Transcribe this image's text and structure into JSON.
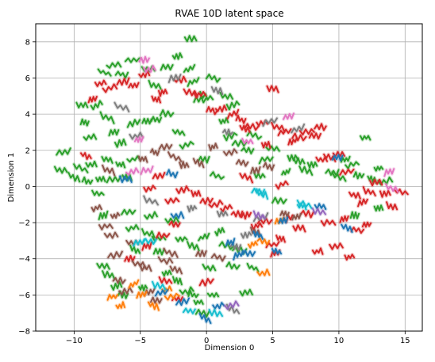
{
  "chart_data": {
    "type": "scatter",
    "title": "RVAE 10D latent space",
    "xlabel": "Dimension 0",
    "ylabel": "Dimension 1",
    "xlim": [
      -12.9,
      16.3
    ],
    "ylim": [
      -8,
      9
    ],
    "xticks": [
      -10,
      -5,
      0,
      5,
      10,
      15
    ],
    "yticks": [
      -8,
      -6,
      -4,
      -2,
      0,
      2,
      4,
      6,
      8
    ],
    "grid": true,
    "legend": "none",
    "colors": {
      "green": "#2ca02c",
      "red": "#d62728",
      "brown": "#8c564b",
      "orange": "#ff7f0e",
      "blue": "#1f77b4",
      "pink": "#e377c2",
      "gray": "#7f7f7f",
      "olive": "#bcbd22",
      "cyan": "#17becf",
      "purple": "#9467bd"
    },
    "series": [
      {
        "color": "green",
        "points": [
          [
            -10.8,
            1.9
          ],
          [
            -11.0,
            0.9
          ],
          [
            -10.0,
            0.5
          ],
          [
            -9.5,
            1.0
          ],
          [
            -9.0,
            0.3
          ],
          [
            -8.7,
            1.2
          ],
          [
            -8.0,
            0.4
          ],
          [
            -7.0,
            0.4
          ],
          [
            -7.5,
            1.5
          ],
          [
            -6.5,
            1.2
          ],
          [
            -6.0,
            0.5
          ],
          [
            -5.5,
            1.5
          ],
          [
            -9.4,
            4.5
          ],
          [
            -9.2,
            3.5
          ],
          [
            -8.8,
            2.7
          ],
          [
            -8.3,
            4.5
          ],
          [
            -7.5,
            3.8
          ],
          [
            -7.0,
            3.0
          ],
          [
            -6.5,
            2.4
          ],
          [
            -5.5,
            3.5
          ],
          [
            -4.5,
            3.6
          ],
          [
            -3.8,
            3.7
          ],
          [
            -3.0,
            4.0
          ],
          [
            -7.7,
            6.3
          ],
          [
            -7.0,
            6.7
          ],
          [
            -6.4,
            6.2
          ],
          [
            -5.6,
            7.0
          ],
          [
            -8.2,
            -0.4
          ],
          [
            -7.8,
            -1.6
          ],
          [
            -7.8,
            -4.4
          ],
          [
            -7.4,
            -4.9
          ],
          [
            -6.8,
            -5.5
          ],
          [
            -6.3,
            -6.0
          ],
          [
            -5.9,
            -1.4
          ],
          [
            -5.4,
            -3.5
          ],
          [
            -4.8,
            -5.6
          ],
          [
            -4.2,
            -1.6
          ],
          [
            -3.6,
            -3.6
          ],
          [
            -3.0,
            -4.8
          ],
          [
            -2.6,
            -1.9
          ],
          [
            -2.2,
            -5.2
          ],
          [
            -1.5,
            -5.8
          ],
          [
            -1.0,
            -6.0
          ],
          [
            -0.6,
            -6.4
          ],
          [
            -0.3,
            -7.0
          ],
          [
            0.2,
            -4.5
          ],
          [
            0.5,
            -6.0
          ],
          [
            1.0,
            -2.5
          ],
          [
            1.5,
            -3.3
          ],
          [
            2.0,
            -4.4
          ],
          [
            2.5,
            -3.5
          ],
          [
            3.0,
            -5.9
          ],
          [
            3.5,
            -4.5
          ],
          [
            -3.9,
            5.6
          ],
          [
            -4.4,
            6.5
          ],
          [
            -3.0,
            6.6
          ],
          [
            -2.2,
            7.2
          ],
          [
            -1.3,
            6.5
          ],
          [
            -1.0,
            5.8
          ],
          [
            -0.5,
            4.8
          ],
          [
            0.0,
            5.0
          ],
          [
            0.5,
            6.0
          ],
          [
            1.5,
            5.0
          ],
          [
            2.0,
            4.5
          ],
          [
            -1.2,
            8.2
          ],
          [
            -2.1,
            3.0
          ],
          [
            -1.5,
            2.3
          ],
          [
            -0.2,
            1.5
          ],
          [
            0.8,
            0.6
          ],
          [
            1.3,
            3.6
          ],
          [
            1.8,
            2.8
          ],
          [
            2.5,
            2.4
          ],
          [
            3.1,
            2.0
          ],
          [
            3.6,
            2.8
          ],
          [
            4.0,
            0.6
          ],
          [
            4.5,
            1.5
          ],
          [
            5.0,
            2.1
          ],
          [
            5.5,
            -0.8
          ],
          [
            6.0,
            0.8
          ],
          [
            6.5,
            1.6
          ],
          [
            7.0,
            1.4
          ],
          [
            7.5,
            0.9
          ],
          [
            8.0,
            1.2
          ],
          [
            9.5,
            0.8
          ],
          [
            10.0,
            0.5
          ],
          [
            10.5,
            1.5
          ],
          [
            11.0,
            1.2
          ],
          [
            11.5,
            0.6
          ],
          [
            12.0,
            2.7
          ],
          [
            12.5,
            0.4
          ],
          [
            13.0,
            1.0
          ],
          [
            13.5,
            0.3
          ],
          [
            -5.6,
            -2.3
          ],
          [
            -4.4,
            -2.6
          ],
          [
            -3.6,
            -2.9
          ],
          [
            -1.9,
            -2.9
          ],
          [
            -1.0,
            -3.3
          ],
          [
            -0.2,
            -2.8
          ],
          [
            11.2,
            -1.6
          ],
          [
            13.0,
            -1.2
          ]
        ]
      },
      {
        "color": "red",
        "points": [
          [
            -9.1,
            1.7
          ],
          [
            -8.6,
            4.8
          ],
          [
            -8.0,
            5.7
          ],
          [
            -7.3,
            5.4
          ],
          [
            -6.3,
            5.8
          ],
          [
            -5.5,
            5.6
          ],
          [
            -4.7,
            6.2
          ],
          [
            -3.8,
            4.8
          ],
          [
            -3.3,
            5.2
          ],
          [
            -2.0,
            5.9
          ],
          [
            -1.2,
            5.2
          ],
          [
            -0.5,
            5.1
          ],
          [
            0.4,
            4.2
          ],
          [
            1.1,
            4.3
          ],
          [
            2.0,
            4.0
          ],
          [
            2.6,
            3.7
          ],
          [
            3.4,
            3.3
          ],
          [
            4.5,
            2.3
          ],
          [
            5.0,
            5.4
          ],
          [
            5.4,
            3.3
          ],
          [
            5.9,
            3.0
          ],
          [
            6.5,
            2.5
          ],
          [
            7.0,
            2.7
          ],
          [
            7.6,
            3.0
          ],
          [
            8.2,
            2.8
          ],
          [
            8.7,
            1.5
          ],
          [
            9.3,
            1.6
          ],
          [
            10.0,
            1.8
          ],
          [
            10.6,
            0.8
          ],
          [
            11.2,
            -0.5
          ],
          [
            11.8,
            -0.9
          ],
          [
            12.3,
            -0.3
          ],
          [
            12.8,
            0.2
          ],
          [
            13.5,
            -0.4
          ],
          [
            14.0,
            -1.1
          ],
          [
            14.7,
            -0.3
          ],
          [
            -4.3,
            -0.1
          ],
          [
            -3.6,
            0.6
          ],
          [
            -2.6,
            -0.8
          ],
          [
            -1.8,
            -0.2
          ],
          [
            -0.8,
            -0.4
          ],
          [
            0.0,
            -0.8
          ],
          [
            0.7,
            -1.0
          ],
          [
            1.5,
            -1.2
          ],
          [
            2.3,
            -1.5
          ],
          [
            3.0,
            -1.6
          ],
          [
            3.8,
            -2.2
          ],
          [
            4.4,
            -1.9
          ],
          [
            5.0,
            -3.2
          ],
          [
            5.6,
            -2.9
          ],
          [
            6.1,
            -1.8
          ],
          [
            7.0,
            -2.3
          ],
          [
            7.6,
            -1.5
          ],
          [
            8.4,
            -3.6
          ],
          [
            9.2,
            -2.0
          ],
          [
            9.8,
            -3.3
          ],
          [
            10.4,
            -1.8
          ],
          [
            10.8,
            -3.9
          ],
          [
            11.4,
            -2.4
          ],
          [
            12.1,
            -2.1
          ],
          [
            -3.3,
            -2.7
          ],
          [
            -2.4,
            -2.1
          ],
          [
            -5.8,
            -4.0
          ],
          [
            -4.5,
            -3.3
          ],
          [
            -3.1,
            -5.2
          ],
          [
            -2.2,
            -6.2
          ],
          [
            0.0,
            -5.3
          ],
          [
            5.2,
            -3.7
          ],
          [
            4.2,
            3.5
          ],
          [
            2.9,
            3.2
          ],
          [
            8.6,
            3.3
          ],
          [
            3.0,
            0.5
          ],
          [
            5.7,
            0.1
          ]
        ]
      },
      {
        "color": "brown",
        "points": [
          [
            -8.3,
            -1.2
          ],
          [
            -7.6,
            -2.2
          ],
          [
            -7.2,
            -2.7
          ],
          [
            -6.9,
            -3.8
          ],
          [
            -6.6,
            -5.2
          ],
          [
            -6.1,
            -5.8
          ],
          [
            -5.6,
            -3.1
          ],
          [
            -5.1,
            -4.3
          ],
          [
            -4.6,
            -4.5
          ],
          [
            -4.3,
            -5.8
          ],
          [
            -3.8,
            -6.3
          ],
          [
            -3.1,
            -4.1
          ],
          [
            -2.7,
            -3.7
          ],
          [
            -2.3,
            -4.6
          ],
          [
            -4.8,
            1.5
          ],
          [
            -3.9,
            1.9
          ],
          [
            -3.1,
            2.2
          ],
          [
            -2.4,
            1.6
          ],
          [
            -1.7,
            1.2
          ],
          [
            -0.6,
            1.3
          ],
          [
            0.5,
            2.2
          ],
          [
            1.8,
            1.9
          ],
          [
            2.7,
            1.3
          ],
          [
            3.7,
            0.9
          ],
          [
            4.7,
            1.1
          ],
          [
            -6.9,
            -1.6
          ],
          [
            -7.4,
            0.9
          ],
          [
            5.9,
            -1.5
          ],
          [
            6.8,
            -1.7
          ],
          [
            -0.4,
            -3.7
          ],
          [
            0.9,
            -3.9
          ],
          [
            3.7,
            -2.5
          ]
        ]
      },
      {
        "color": "gray",
        "points": [
          [
            -6.4,
            4.4
          ],
          [
            -5.3,
            2.8
          ],
          [
            -2.4,
            6.0
          ],
          [
            0.8,
            5.3
          ],
          [
            1.6,
            3.0
          ],
          [
            4.1,
            -1.7
          ],
          [
            4.8,
            3.6
          ],
          [
            6.9,
            3.2
          ],
          [
            -4.2,
            -0.8
          ],
          [
            -1.1,
            -1.2
          ],
          [
            1.2,
            -1.5
          ],
          [
            2.2,
            -3.3
          ],
          [
            3.0,
            -2.7
          ],
          [
            2.0,
            -6.8
          ]
        ]
      },
      {
        "color": "orange",
        "points": [
          [
            -7.1,
            -6.1
          ],
          [
            -6.5,
            -6.6
          ],
          [
            -5.5,
            -5.4
          ],
          [
            -4.9,
            -6.0
          ],
          [
            -4.0,
            -6.6
          ],
          [
            -3.0,
            -5.7
          ],
          [
            -2.6,
            -6.1
          ],
          [
            3.5,
            -3.2
          ],
          [
            4.3,
            -3.0
          ],
          [
            4.3,
            -4.8
          ],
          [
            5.5,
            -1.9
          ]
        ]
      },
      {
        "color": "blue",
        "points": [
          [
            -6.1,
            0.4
          ],
          [
            -2.6,
            0.7
          ],
          [
            -2.2,
            -1.6
          ],
          [
            -3.4,
            -5.9
          ],
          [
            -1.8,
            -6.4
          ],
          [
            -0.1,
            -7.3
          ],
          [
            0.9,
            -6.6
          ],
          [
            1.8,
            -3.1
          ],
          [
            2.4,
            -3.8
          ],
          [
            3.2,
            -3.7
          ],
          [
            5.3,
            -3.6
          ],
          [
            9.9,
            1.6
          ],
          [
            10.6,
            -2.3
          ],
          [
            8.6,
            -1.1
          ],
          [
            3.9,
            -2.7
          ],
          [
            5.8,
            -1.9
          ]
        ]
      },
      {
        "color": "pink",
        "points": [
          [
            -4.7,
            7.0
          ],
          [
            -4.3,
            6.5
          ],
          [
            -5.1,
            2.6
          ],
          [
            -5.6,
            0.8
          ],
          [
            -4.5,
            0.9
          ],
          [
            3.1,
            2.5
          ],
          [
            6.2,
            3.9
          ],
          [
            14.0,
            -0.1
          ],
          [
            13.8,
            0.8
          ]
        ]
      },
      {
        "color": "cyan",
        "points": [
          [
            -4.3,
            -3.0
          ],
          [
            -3.6,
            -5.5
          ],
          [
            4.2,
            -0.4
          ],
          [
            7.2,
            -1.1
          ],
          [
            0.7,
            -7.0
          ],
          [
            -1.3,
            -6.9
          ],
          [
            3.9,
            -0.3
          ],
          [
            7.4,
            -1.0
          ],
          [
            -5.1,
            -3.1
          ]
        ]
      },
      {
        "color": "purple",
        "points": [
          [
            4.0,
            -1.6
          ],
          [
            8.5,
            -1.4
          ],
          [
            1.9,
            -6.6
          ]
        ]
      }
    ]
  }
}
